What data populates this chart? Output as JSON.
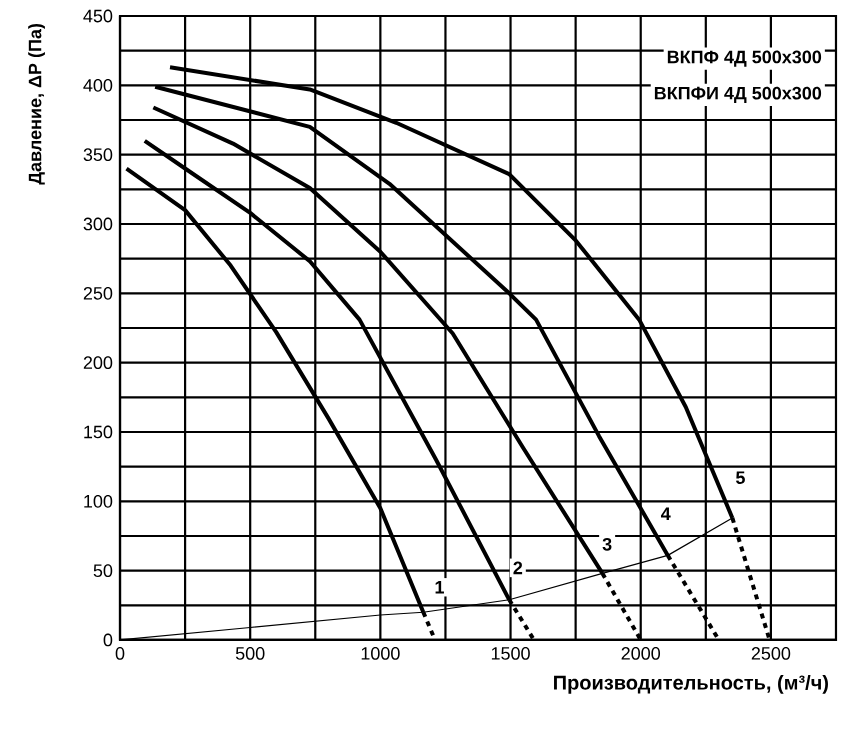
{
  "chart_data": {
    "type": "line",
    "xlabel": "Производительность, (м³/ч)",
    "ylabel": "Давление, ΔP (Па)",
    "xlim": [
      0,
      2750
    ],
    "ylim": [
      0,
      450
    ],
    "xticks": [
      0,
      {
        "value": 250,
        "label": null
      },
      500,
      {
        "value": 750,
        "label": null
      },
      1000,
      {
        "value": 1250,
        "label": null
      },
      1500,
      {
        "value": 1750,
        "label": null
      },
      2000,
      {
        "value": 2250,
        "label": null
      },
      2500
    ],
    "yticks": [
      0,
      {
        "value": 25,
        "label": null
      },
      50,
      {
        "value": 75,
        "label": null
      },
      100,
      {
        "value": 125,
        "label": null
      },
      150,
      {
        "value": 175,
        "label": null
      },
      200,
      {
        "value": 225,
        "label": null
      },
      250,
      {
        "value": 275,
        "label": null
      },
      300,
      {
        "value": 325,
        "label": null
      },
      350,
      {
        "value": 375,
        "label": null
      },
      400,
      {
        "value": 425,
        "label": null
      },
      450
    ],
    "grid": true,
    "marker": "none",
    "series": [
      {
        "color": "#000000",
        "line_style": "solid",
        "x": [
          25,
          250,
          425,
          600,
          800,
          1000,
          1165
        ],
        "values": [
          340,
          310,
          270,
          222,
          160,
          95,
          20
        ]
      },
      {
        "color": "#000000",
        "line_style": "dotted",
        "x": [
          1165,
          1210
        ],
        "values": [
          20,
          0
        ]
      },
      {
        "color": "#000000",
        "line_style": "solid",
        "x": [
          95,
          250,
          500,
          730,
          920,
          1214,
          1495
        ],
        "values": [
          360,
          340,
          308,
          273,
          231,
          130,
          29
        ]
      },
      {
        "color": "#000000",
        "line_style": "dotted",
        "x": [
          1495,
          1590
        ],
        "values": [
          29,
          0
        ]
      },
      {
        "color": "#000000",
        "line_style": "solid",
        "x": [
          128,
          434,
          729,
          1000,
          1278,
          1547,
          1853
        ],
        "values": [
          384,
          358,
          326,
          280,
          221,
          139,
          48
        ]
      },
      {
        "color": "#000000",
        "line_style": "dotted",
        "x": [
          1853,
          2000
        ],
        "values": [
          48,
          0
        ]
      },
      {
        "color": "#000000",
        "line_style": "solid",
        "x": [
          135,
          729,
          1035,
          1495,
          1598,
          1840,
          2104
        ],
        "values": [
          399,
          370,
          329,
          250,
          231,
          147,
          61
        ]
      },
      {
        "color": "#000000",
        "line_style": "dotted",
        "x": [
          2104,
          2300
        ],
        "values": [
          61,
          0
        ]
      },
      {
        "color": "#000000",
        "line_style": "solid",
        "x": [
          192,
          729,
          1061,
          1495,
          1751,
          1994,
          2173,
          2352
        ],
        "values": [
          413,
          397,
          373,
          336,
          288,
          231,
          168,
          88
        ]
      },
      {
        "color": "#000000",
        "line_style": "dotted",
        "x": [
          2352,
          2495
        ],
        "values": [
          88,
          0
        ]
      },
      {
        "color": "#000000",
        "line_style": "solid",
        "x": [
          0,
          500,
          1000,
          1165,
          1495,
          1853,
          2104,
          2352
        ],
        "values": [
          0,
          9,
          18,
          20,
          29,
          48,
          61,
          88
        ]
      }
    ],
    "annotations": [
      "ВКПФ  4Д 500x300",
      "ВКПФИ  4Д 500x300",
      {
        "text": "1",
        "x": 1227,
        "y": 38
      },
      {
        "text": "2",
        "x": 1528,
        "y": 52
      },
      {
        "text": "3",
        "x": 1871,
        "y": 69
      },
      {
        "text": "4",
        "x": 2096,
        "y": 91
      },
      {
        "text": "5",
        "x": 2383,
        "y": 117
      }
    ]
  }
}
